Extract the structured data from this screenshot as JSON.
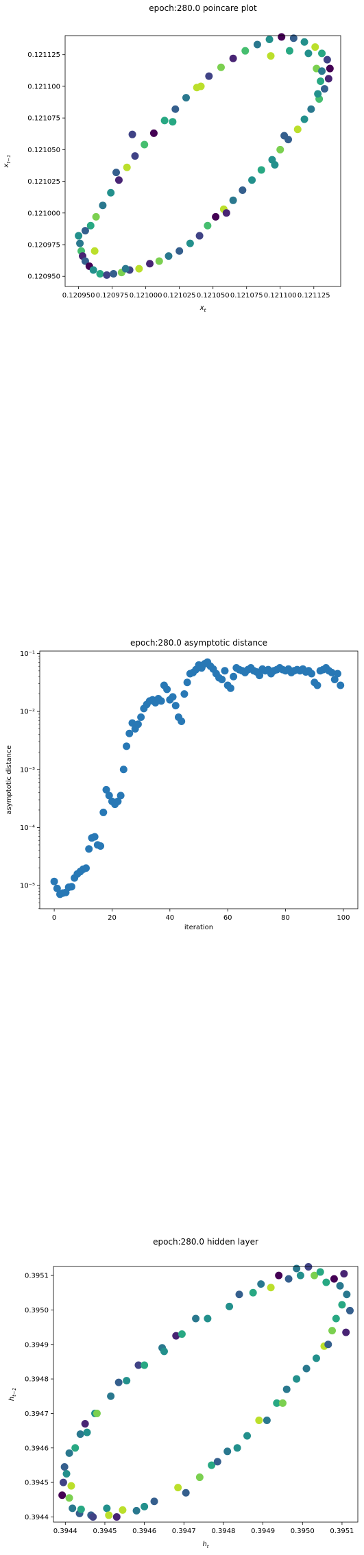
{
  "chart_data": [
    {
      "type": "scatter",
      "title": "epoch:280.0 poincare plot",
      "xlabel": "x_t",
      "ylabel": "x_{t-1}",
      "xlim": [
        0.12094,
        0.121145
      ],
      "ylim": [
        0.120942,
        0.12114
      ],
      "xticks": [
        "0.120950",
        "0.120975",
        "0.121000",
        "0.121025",
        "0.121050",
        "0.121075",
        "0.121100",
        "0.121125"
      ],
      "yticks": [
        "0.120950",
        "0.120975",
        "0.121000",
        "0.121025",
        "0.121050",
        "0.121075",
        "0.121100",
        "0.121125"
      ],
      "xtick_values": [
        0.12095,
        0.120975,
        0.121,
        0.121025,
        0.12105,
        0.121075,
        0.1211,
        0.121125
      ],
      "ytick_values": [
        0.12095,
        0.120975,
        0.121,
        0.121025,
        0.12105,
        0.121075,
        0.1211,
        0.121125
      ],
      "colormap": "viridis",
      "grid": false,
      "points": [
        {
          "x": 0.12095,
          "y": 0.120982,
          "c": 0.5
        },
        {
          "x": 0.120951,
          "y": 0.120976,
          "c": 0.4
        },
        {
          "x": 0.120952,
          "y": 0.12097,
          "c": 0.7
        },
        {
          "x": 0.120953,
          "y": 0.120966,
          "c": 0.1
        },
        {
          "x": 0.120955,
          "y": 0.120962,
          "c": 0.3
        },
        {
          "x": 0.120958,
          "y": 0.120958,
          "c": 0.0
        },
        {
          "x": 0.120961,
          "y": 0.120955,
          "c": 0.5
        },
        {
          "x": 0.120966,
          "y": 0.120952,
          "c": 0.6
        },
        {
          "x": 0.120971,
          "y": 0.120951,
          "c": 0.2
        },
        {
          "x": 0.120976,
          "y": 0.120952,
          "c": 0.3
        },
        {
          "x": 0.120982,
          "y": 0.120953,
          "c": 0.8
        },
        {
          "x": 0.120988,
          "y": 0.120955,
          "c": 0.2
        },
        {
          "x": 0.120995,
          "y": 0.120956,
          "c": 0.9
        },
        {
          "x": 0.121003,
          "y": 0.12096,
          "c": 0.1
        },
        {
          "x": 0.12101,
          "y": 0.120962,
          "c": 0.8
        },
        {
          "x": 0.121017,
          "y": 0.120966,
          "c": 0.4
        },
        {
          "x": 0.121025,
          "y": 0.12097,
          "c": 0.3
        },
        {
          "x": 0.121033,
          "y": 0.120976,
          "c": 0.5
        },
        {
          "x": 0.12104,
          "y": 0.120982,
          "c": 0.2
        },
        {
          "x": 0.121046,
          "y": 0.12099,
          "c": 0.7
        },
        {
          "x": 0.121052,
          "y": 0.120997,
          "c": 0.0
        },
        {
          "x": 0.121058,
          "y": 0.121003,
          "c": 0.9
        },
        {
          "x": 0.121065,
          "y": 0.12101,
          "c": 0.4
        },
        {
          "x": 0.121072,
          "y": 0.121018,
          "c": 0.3
        },
        {
          "x": 0.121079,
          "y": 0.121026,
          "c": 0.5
        },
        {
          "x": 0.121086,
          "y": 0.121034,
          "c": 0.6
        },
        {
          "x": 0.121094,
          "y": 0.121042,
          "c": 0.5
        },
        {
          "x": 0.1211,
          "y": 0.12105,
          "c": 0.8
        },
        {
          "x": 0.121106,
          "y": 0.121058,
          "c": 0.3
        },
        {
          "x": 0.121113,
          "y": 0.121066,
          "c": 0.9
        },
        {
          "x": 0.121118,
          "y": 0.121074,
          "c": 0.5
        },
        {
          "x": 0.121123,
          "y": 0.121082,
          "c": 0.4
        },
        {
          "x": 0.121129,
          "y": 0.12109,
          "c": 0.7
        },
        {
          "x": 0.121133,
          "y": 0.121098,
          "c": 0.3
        },
        {
          "x": 0.121136,
          "y": 0.121106,
          "c": 0.1
        },
        {
          "x": 0.121137,
          "y": 0.121114,
          "c": 0.0
        },
        {
          "x": 0.121135,
          "y": 0.121121,
          "c": 0.2
        },
        {
          "x": 0.121131,
          "y": 0.121126,
          "c": 0.6
        },
        {
          "x": 0.121126,
          "y": 0.121131,
          "c": 0.9
        },
        {
          "x": 0.121118,
          "y": 0.121135,
          "c": 0.5
        },
        {
          "x": 0.12111,
          "y": 0.121138,
          "c": 0.3
        },
        {
          "x": 0.121101,
          "y": 0.121139,
          "c": 0.0
        },
        {
          "x": 0.121092,
          "y": 0.121137,
          "c": 0.5
        },
        {
          "x": 0.121083,
          "y": 0.121133,
          "c": 0.4
        },
        {
          "x": 0.121074,
          "y": 0.121128,
          "c": 0.7
        },
        {
          "x": 0.121065,
          "y": 0.121122,
          "c": 0.1
        },
        {
          "x": 0.121056,
          "y": 0.121115,
          "c": 0.8
        },
        {
          "x": 0.121047,
          "y": 0.121108,
          "c": 0.2
        },
        {
          "x": 0.121038,
          "y": 0.121099,
          "c": 0.9
        },
        {
          "x": 0.12103,
          "y": 0.121091,
          "c": 0.4
        },
        {
          "x": 0.121022,
          "y": 0.121082,
          "c": 0.3
        },
        {
          "x": 0.121014,
          "y": 0.121073,
          "c": 0.6
        },
        {
          "x": 0.121006,
          "y": 0.121063,
          "c": 0.0
        },
        {
          "x": 0.120999,
          "y": 0.121054,
          "c": 0.7
        },
        {
          "x": 0.120992,
          "y": 0.121045,
          "c": 0.2
        },
        {
          "x": 0.120986,
          "y": 0.121036,
          "c": 0.9
        },
        {
          "x": 0.12098,
          "y": 0.121026,
          "c": 0.1
        },
        {
          "x": 0.120974,
          "y": 0.121016,
          "c": 0.5
        },
        {
          "x": 0.120968,
          "y": 0.121006,
          "c": 0.4
        },
        {
          "x": 0.120963,
          "y": 0.120997,
          "c": 0.8
        },
        {
          "x": 0.120959,
          "y": 0.12099,
          "c": 0.6
        },
        {
          "x": 0.120955,
          "y": 0.120986,
          "c": 0.3
        },
        {
          "x": 0.121127,
          "y": 0.121114,
          "c": 0.8
        },
        {
          "x": 0.121121,
          "y": 0.121126,
          "c": 0.5
        },
        {
          "x": 0.121107,
          "y": 0.121128,
          "c": 0.6
        },
        {
          "x": 0.121093,
          "y": 0.121124,
          "c": 0.9
        },
        {
          "x": 0.12113,
          "y": 0.121104,
          "c": 0.6
        },
        {
          "x": 0.121128,
          "y": 0.121094,
          "c": 0.5
        },
        {
          "x": 0.121103,
          "y": 0.121061,
          "c": 0.3
        },
        {
          "x": 0.121041,
          "y": 0.1211,
          "c": 0.9
        },
        {
          "x": 0.12102,
          "y": 0.121072,
          "c": 0.6
        },
        {
          "x": 0.12099,
          "y": 0.121062,
          "c": 0.2
        },
        {
          "x": 0.120978,
          "y": 0.121032,
          "c": 0.3
        },
        {
          "x": 0.120962,
          "y": 0.12097,
          "c": 0.9
        },
        {
          "x": 0.120985,
          "y": 0.120956,
          "c": 0.4
        },
        {
          "x": 0.12106,
          "y": 0.121,
          "c": 0.1
        },
        {
          "x": 0.121096,
          "y": 0.121038,
          "c": 0.5
        },
        {
          "x": 0.121131,
          "y": 0.121112,
          "c": 0.4
        }
      ]
    },
    {
      "type": "scatter",
      "title": "epoch:280.0 asymptotic distance",
      "xlabel": "iteration",
      "ylabel": "asymptotic distance",
      "scale_y": "log",
      "xlim": [
        -5,
        105
      ],
      "ylim_log10": [
        -5.4,
        -0.96
      ],
      "xticks": [
        "0",
        "20",
        "40",
        "60",
        "80",
        "100"
      ],
      "xtick_values": [
        0,
        20,
        40,
        60,
        80,
        100
      ],
      "yticks": [
        "10⁻⁵",
        "10⁻⁴",
        "10⁻³",
        "10⁻²",
        "10⁻¹"
      ],
      "ytick_values": [
        -5,
        -4,
        -3,
        -2,
        -1
      ],
      "color": "#2878b5",
      "grid": false,
      "x": [
        0,
        1,
        2,
        3,
        4,
        5,
        6,
        7,
        8,
        9,
        10,
        11,
        12,
        13,
        14,
        15,
        16,
        17,
        18,
        19,
        20,
        21,
        22,
        23,
        24,
        25,
        26,
        27,
        28,
        29,
        30,
        31,
        32,
        33,
        34,
        35,
        36,
        37,
        38,
        39,
        40,
        41,
        42,
        43,
        44,
        45,
        46,
        47,
        48,
        49,
        50,
        51,
        52,
        53,
        54,
        55,
        56,
        57,
        58,
        59,
        60,
        61,
        62,
        63,
        64,
        65,
        66,
        67,
        68,
        69,
        70,
        71,
        72,
        73,
        74,
        75,
        76,
        77,
        78,
        79,
        80,
        81,
        82,
        83,
        84,
        85,
        86,
        87,
        88,
        89,
        90,
        91,
        92,
        93,
        94,
        95,
        96,
        97,
        98,
        99
      ],
      "log10_y": [
        -4.93,
        -5.05,
        -5.15,
        -5.13,
        -5.12,
        -5.03,
        -5.02,
        -4.87,
        -4.8,
        -4.76,
        -4.72,
        -4.7,
        -4.37,
        -4.18,
        -4.16,
        -4.3,
        -4.32,
        -3.74,
        -3.35,
        -3.45,
        -3.55,
        -3.6,
        -3.55,
        -3.45,
        -3.0,
        -2.6,
        -2.38,
        -2.2,
        -2.3,
        -2.22,
        -2.1,
        -1.95,
        -1.88,
        -1.82,
        -1.8,
        -1.85,
        -1.78,
        -1.82,
        -1.55,
        -1.62,
        -1.8,
        -1.75,
        -1.9,
        -2.1,
        -2.17,
        -1.7,
        -1.5,
        -1.35,
        -1.33,
        -1.28,
        -1.2,
        -1.25,
        -1.18,
        -1.15,
        -1.22,
        -1.27,
        -1.35,
        -1.42,
        -1.45,
        -1.3,
        -1.55,
        -1.6,
        -1.4,
        -1.25,
        -1.28,
        -1.3,
        -1.33,
        -1.28,
        -1.25,
        -1.3,
        -1.32,
        -1.38,
        -1.27,
        -1.3,
        -1.28,
        -1.35,
        -1.3,
        -1.28,
        -1.25,
        -1.28,
        -1.3,
        -1.27,
        -1.33,
        -1.3,
        -1.28,
        -1.3,
        -1.27,
        -1.32,
        -1.3,
        -1.35,
        -1.5,
        -1.55,
        -1.3,
        -1.28,
        -1.25,
        -1.3,
        -1.33,
        -1.45,
        -1.35,
        -1.55
      ]
    },
    {
      "type": "scatter",
      "title": "epoch:280.0 hidden layer",
      "xlabel": "h_t",
      "ylabel": "h_{t-1}",
      "xlim": [
        0.39437,
        0.39514
      ],
      "ylim": [
        0.394385,
        0.395126
      ],
      "xticks": [
        "0.3944",
        "0.3945",
        "0.3946",
        "0.3947",
        "0.3948",
        "0.3949",
        "0.3950",
        "0.3951"
      ],
      "yticks": [
        "0.3944",
        "0.3945",
        "0.3946",
        "0.3947",
        "0.3948",
        "0.3949",
        "0.3950",
        "0.3951"
      ],
      "xtick_values": [
        0.3944,
        0.3945,
        0.3946,
        0.3947,
        0.3948,
        0.3949,
        0.395,
        0.3951
      ],
      "ytick_values": [
        0.3944,
        0.3945,
        0.3946,
        0.3947,
        0.3948,
        0.3949,
        0.395,
        0.3951
      ],
      "colormap": "viridis",
      "grid": false,
      "points": [
        {
          "x": 0.394392,
          "y": 0.394463,
          "c": 0.0
        },
        {
          "x": 0.394395,
          "y": 0.3945,
          "c": 0.2
        },
        {
          "x": 0.394398,
          "y": 0.394545,
          "c": 0.3
        },
        {
          "x": 0.394403,
          "y": 0.394525,
          "c": 0.5
        },
        {
          "x": 0.39441,
          "y": 0.394455,
          "c": 0.8
        },
        {
          "x": 0.39441,
          "y": 0.394585,
          "c": 0.4
        },
        {
          "x": 0.394415,
          "y": 0.39449,
          "c": 0.9
        },
        {
          "x": 0.394418,
          "y": 0.394425,
          "c": 0.4
        },
        {
          "x": 0.394425,
          "y": 0.3946,
          "c": 0.6
        },
        {
          "x": 0.394436,
          "y": 0.39441,
          "c": 0.3
        },
        {
          "x": 0.394438,
          "y": 0.39464,
          "c": 0.4
        },
        {
          "x": 0.39444,
          "y": 0.394422,
          "c": 0.6
        },
        {
          "x": 0.39445,
          "y": 0.39467,
          "c": 0.1
        },
        {
          "x": 0.394455,
          "y": 0.394645,
          "c": 0.5
        },
        {
          "x": 0.394465,
          "y": 0.394405,
          "c": 0.3
        },
        {
          "x": 0.39447,
          "y": 0.3944,
          "c": 0.2
        },
        {
          "x": 0.394475,
          "y": 0.3947,
          "c": 0.5
        },
        {
          "x": 0.39448,
          "y": 0.3947,
          "c": 0.8
        },
        {
          "x": 0.394505,
          "y": 0.394425,
          "c": 0.5
        },
        {
          "x": 0.39451,
          "y": 0.394405,
          "c": 0.9
        },
        {
          "x": 0.394515,
          "y": 0.39475,
          "c": 0.4
        },
        {
          "x": 0.39453,
          "y": 0.3944,
          "c": 0.1
        },
        {
          "x": 0.394535,
          "y": 0.39479,
          "c": 0.3
        },
        {
          "x": 0.394545,
          "y": 0.39442,
          "c": 0.9
        },
        {
          "x": 0.394555,
          "y": 0.394795,
          "c": 0.5
        },
        {
          "x": 0.39458,
          "y": 0.394418,
          "c": 0.4
        },
        {
          "x": 0.394585,
          "y": 0.39484,
          "c": 0.2
        },
        {
          "x": 0.3946,
          "y": 0.39484,
          "c": 0.6
        },
        {
          "x": 0.3946,
          "y": 0.39443,
          "c": 0.5
        },
        {
          "x": 0.394625,
          "y": 0.394445,
          "c": 0.3
        },
        {
          "x": 0.394645,
          "y": 0.39489,
          "c": 0.4
        },
        {
          "x": 0.39465,
          "y": 0.39488,
          "c": 0.5
        },
        {
          "x": 0.39468,
          "y": 0.394925,
          "c": 0.1
        },
        {
          "x": 0.394685,
          "y": 0.394485,
          "c": 0.9
        },
        {
          "x": 0.394695,
          "y": 0.39493,
          "c": 0.6
        },
        {
          "x": 0.394705,
          "y": 0.39447,
          "c": 0.3
        },
        {
          "x": 0.39473,
          "y": 0.394975,
          "c": 0.4
        },
        {
          "x": 0.39474,
          "y": 0.394515,
          "c": 0.8
        },
        {
          "x": 0.39476,
          "y": 0.394975,
          "c": 0.5
        },
        {
          "x": 0.39477,
          "y": 0.39455,
          "c": 0.6
        },
        {
          "x": 0.394785,
          "y": 0.39456,
          "c": 0.3
        },
        {
          "x": 0.39481,
          "y": 0.39459,
          "c": 0.4
        },
        {
          "x": 0.394815,
          "y": 0.39501,
          "c": 0.5
        },
        {
          "x": 0.394835,
          "y": 0.3946,
          "c": 0.5
        },
        {
          "x": 0.39484,
          "y": 0.395045,
          "c": 0.3
        },
        {
          "x": 0.39486,
          "y": 0.394635,
          "c": 0.5
        },
        {
          "x": 0.394875,
          "y": 0.39505,
          "c": 0.6
        },
        {
          "x": 0.39489,
          "y": 0.39468,
          "c": 0.9
        },
        {
          "x": 0.394895,
          "y": 0.395075,
          "c": 0.4
        },
        {
          "x": 0.39491,
          "y": 0.39468,
          "c": 0.4
        },
        {
          "x": 0.39492,
          "y": 0.395065,
          "c": 0.9
        },
        {
          "x": 0.394935,
          "y": 0.39473,
          "c": 0.6
        },
        {
          "x": 0.39494,
          "y": 0.3951,
          "c": 0.0
        },
        {
          "x": 0.39495,
          "y": 0.39473,
          "c": 0.8
        },
        {
          "x": 0.39496,
          "y": 0.39477,
          "c": 0.4
        },
        {
          "x": 0.394965,
          "y": 0.39509,
          "c": 0.3
        },
        {
          "x": 0.394985,
          "y": 0.39512,
          "c": 0.4
        },
        {
          "x": 0.394985,
          "y": 0.3948,
          "c": 0.5
        },
        {
          "x": 0.394995,
          "y": 0.3951,
          "c": 0.5
        },
        {
          "x": 0.39501,
          "y": 0.39483,
          "c": 0.4
        },
        {
          "x": 0.395015,
          "y": 0.395125,
          "c": 0.2
        },
        {
          "x": 0.39503,
          "y": 0.3951,
          "c": 0.8
        },
        {
          "x": 0.395035,
          "y": 0.39486,
          "c": 0.5
        },
        {
          "x": 0.395045,
          "y": 0.39511,
          "c": 0.6
        },
        {
          "x": 0.395055,
          "y": 0.394895,
          "c": 0.9
        },
        {
          "x": 0.39506,
          "y": 0.39508,
          "c": 0.6
        },
        {
          "x": 0.395065,
          "y": 0.3949,
          "c": 0.3
        },
        {
          "x": 0.395075,
          "y": 0.39494,
          "c": 0.8
        },
        {
          "x": 0.39508,
          "y": 0.39509,
          "c": 0.0
        },
        {
          "x": 0.395085,
          "y": 0.394975,
          "c": 0.6
        },
        {
          "x": 0.395095,
          "y": 0.39507,
          "c": 0.4
        },
        {
          "x": 0.3951,
          "y": 0.395015,
          "c": 0.6
        },
        {
          "x": 0.395105,
          "y": 0.395105,
          "c": 0.1
        },
        {
          "x": 0.39511,
          "y": 0.394935,
          "c": 0.1
        },
        {
          "x": 0.395112,
          "y": 0.395045,
          "c": 0.4
        },
        {
          "x": 0.39512,
          "y": 0.394998,
          "c": 0.3
        }
      ]
    }
  ]
}
